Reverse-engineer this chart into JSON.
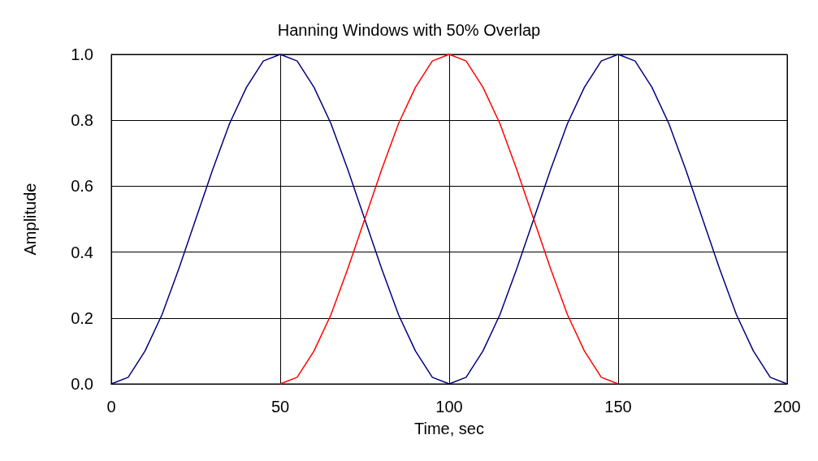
{
  "chart_data": {
    "type": "line",
    "title": "Hanning Windows with 50% Overlap",
    "xlabel": "Time, sec",
    "ylabel": "Amplitude",
    "series": [
      {
        "color": "#000080",
        "x": [
          0,
          5,
          10,
          15,
          20,
          25,
          30,
          35,
          40,
          45,
          50,
          55,
          60,
          65,
          70,
          75,
          80,
          85,
          90,
          95,
          100,
          105,
          110,
          115,
          120,
          125,
          130,
          135,
          140,
          145,
          150,
          155,
          160,
          165,
          170,
          175,
          180,
          185,
          190,
          195,
          200
        ],
        "values": [
          0,
          0.02,
          0.1,
          0.21,
          0.35,
          0.5,
          0.65,
          0.79,
          0.9,
          0.98,
          1,
          0.98,
          0.9,
          0.79,
          0.65,
          0.5,
          0.35,
          0.21,
          0.1,
          0.02,
          0,
          0.02,
          0.1,
          0.21,
          0.35,
          0.5,
          0.65,
          0.79,
          0.9,
          0.98,
          1,
          0.98,
          0.9,
          0.79,
          0.65,
          0.5,
          0.35,
          0.21,
          0.1,
          0.02,
          0
        ]
      },
      {
        "color": "#ff0000",
        "x": [
          50,
          55,
          60,
          65,
          70,
          75,
          80,
          85,
          90,
          95,
          100,
          105,
          110,
          115,
          120,
          125,
          130,
          135,
          140,
          145,
          150
        ],
        "values": [
          0,
          0.02,
          0.1,
          0.21,
          0.35,
          0.5,
          0.65,
          0.79,
          0.9,
          0.98,
          1,
          0.98,
          0.9,
          0.79,
          0.65,
          0.5,
          0.35,
          0.21,
          0.1,
          0.02,
          0
        ]
      }
    ],
    "xlim": [
      0,
      200
    ],
    "xticks": [
      0,
      50,
      100,
      150,
      200
    ],
    "ylim": [
      0,
      1
    ],
    "yticks": [
      {
        "value": 0,
        "label": "0.0"
      },
      0.2,
      0.4,
      0.6,
      0.8,
      {
        "value": 1,
        "label": "1.0"
      }
    ],
    "grid": true,
    "marker": "none",
    "line_style": "solid"
  }
}
